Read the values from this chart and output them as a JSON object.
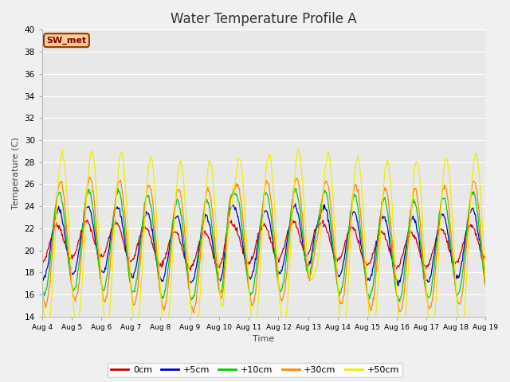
{
  "title": "Water Temperature Profile A",
  "xlabel": "Time",
  "ylabel": "Temperature (C)",
  "ylim": [
    14,
    40
  ],
  "yticks": [
    14,
    16,
    18,
    20,
    22,
    24,
    26,
    28,
    30,
    32,
    34,
    36,
    38,
    40
  ],
  "colors": {
    "0cm": "#cc0000",
    "+5cm": "#0000cc",
    "+10cm": "#00cc00",
    "+30cm": "#ff8800",
    "+50cm": "#eeee00"
  },
  "background_color": "#e8e8e8",
  "fig_facecolor": "#f0f0f0",
  "n_days": 15,
  "n_per_day": 48,
  "start_day": 4,
  "base_temp": 20.5,
  "amplitudes": {
    "0cm": 1.6,
    "+5cm": 3.0,
    "+10cm": 4.5,
    "+30cm": 5.5,
    "+50cm": 8.0
  },
  "phase_lags": {
    "0cm": 0.0,
    "+5cm": 0.05,
    "+10cm": 0.08,
    "+30cm": 0.12,
    "+50cm": 0.18
  }
}
